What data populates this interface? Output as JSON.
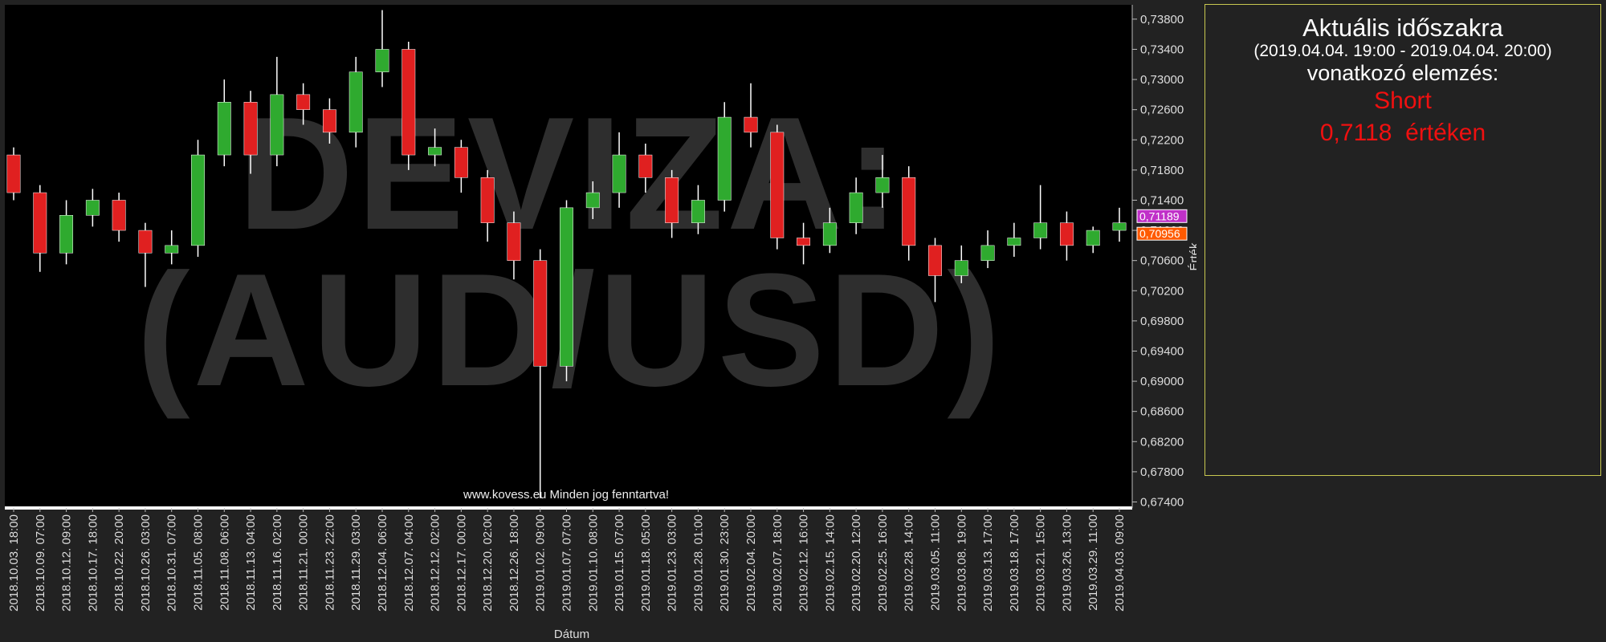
{
  "chart_data": {
    "type": "candlestick",
    "watermark": [
      "DEVIZA:",
      "(AUD/USD)"
    ],
    "footer": "www.kovess.eu Minden jog fenntartva!",
    "xlabel": "Dátum",
    "ylabel": "Érték",
    "up_color": "#2faa2f",
    "down_color": "#e02020",
    "categories": [
      "2018.10.03. 18:00",
      "2018.10.09. 07:00",
      "2018.10.12. 09:00",
      "2018.10.17. 18:00",
      "2018.10.22. 20:00",
      "2018.10.26. 03:00",
      "2018.10.31. 07:00",
      "2018.11.05. 08:00",
      "2018.11.08. 06:00",
      "2018.11.13. 04:00",
      "2018.11.16. 02:00",
      "2018.11.21. 00:00",
      "2018.11.23. 22:00",
      "2018.11.29. 03:00",
      "2018.12.04. 06:00",
      "2018.12.07. 04:00",
      "2018.12.12. 02:00",
      "2018.12.17. 00:00",
      "2018.12.20. 02:00",
      "2018.12.26. 18:00",
      "2019.01.02. 09:00",
      "2019.01.07. 07:00",
      "2019.01.10. 08:00",
      "2019.01.15. 07:00",
      "2019.01.18. 05:00",
      "2019.01.23. 03:00",
      "2019.01.28. 01:00",
      "2019.01.30. 23:00",
      "2019.02.04. 20:00",
      "2019.02.07. 18:00",
      "2019.02.12. 16:00",
      "2019.02.15. 14:00",
      "2019.02.20. 12:00",
      "2019.02.25. 16:00",
      "2019.02.28. 14:00",
      "2019.03.05. 11:00",
      "2019.03.08. 19:00",
      "2019.03.13. 17:00",
      "2019.03.18. 17:00",
      "2019.03.21. 15:00",
      "2019.03.26. 13:00",
      "2019.03.29. 11:00",
      "2019.04.03. 09:00"
    ],
    "open": [
      0.72,
      0.715,
      0.707,
      0.712,
      0.714,
      0.71,
      0.707,
      0.708,
      0.72,
      0.727,
      0.72,
      0.728,
      0.726,
      0.723,
      0.731,
      0.734,
      0.72,
      0.721,
      0.717,
      0.711,
      0.706,
      0.692,
      0.713,
      0.715,
      0.72,
      0.717,
      0.711,
      0.714,
      0.725,
      0.723,
      0.709,
      0.708,
      0.711,
      0.715,
      0.717,
      0.708,
      0.704,
      0.706,
      0.708,
      0.709,
      0.711,
      0.708,
      0.71
    ],
    "high": [
      0.721,
      0.716,
      0.714,
      0.7155,
      0.715,
      0.711,
      0.71,
      0.722,
      0.73,
      0.7285,
      0.733,
      0.7295,
      0.7275,
      0.733,
      0.7392,
      0.735,
      0.7235,
      0.722,
      0.718,
      0.7125,
      0.7075,
      0.714,
      0.7165,
      0.723,
      0.7215,
      0.718,
      0.716,
      0.727,
      0.7295,
      0.724,
      0.711,
      0.713,
      0.717,
      0.72,
      0.7185,
      0.709,
      0.708,
      0.71,
      0.711,
      0.716,
      0.7125,
      0.7105,
      0.713
    ],
    "low": [
      0.714,
      0.7045,
      0.7055,
      0.7105,
      0.7085,
      0.7025,
      0.7055,
      0.7065,
      0.7185,
      0.7175,
      0.7185,
      0.724,
      0.7215,
      0.721,
      0.729,
      0.718,
      0.7185,
      0.715,
      0.7085,
      0.7035,
      0.6745,
      0.69,
      0.7115,
      0.713,
      0.715,
      0.709,
      0.7095,
      0.7125,
      0.721,
      0.7075,
      0.7055,
      0.707,
      0.7095,
      0.713,
      0.706,
      0.7005,
      0.703,
      0.705,
      0.7065,
      0.7075,
      0.706,
      0.707,
      0.7085
    ],
    "close": [
      0.715,
      0.707,
      0.712,
      0.714,
      0.71,
      0.707,
      0.708,
      0.72,
      0.727,
      0.72,
      0.728,
      0.726,
      0.723,
      0.731,
      0.734,
      0.72,
      0.721,
      0.717,
      0.711,
      0.706,
      0.692,
      0.713,
      0.715,
      0.72,
      0.717,
      0.711,
      0.714,
      0.725,
      0.723,
      0.709,
      0.708,
      0.711,
      0.715,
      0.717,
      0.708,
      0.704,
      0.706,
      0.708,
      0.709,
      0.711,
      0.708,
      0.71,
      0.711
    ],
    "ylim": [
      0.6732,
      0.7399
    ],
    "yticks": [
      {
        "value": 0.674,
        "label": "0,67400"
      },
      {
        "value": 0.678,
        "label": "0,67800"
      },
      {
        "value": 0.682,
        "label": "0,68200"
      },
      {
        "value": 0.686,
        "label": "0,68600"
      },
      {
        "value": 0.69,
        "label": "0,69000"
      },
      {
        "value": 0.694,
        "label": "0,69400"
      },
      {
        "value": 0.698,
        "label": "0,69800"
      },
      {
        "value": 0.702,
        "label": "0,70200"
      },
      {
        "value": 0.706,
        "label": "0,70600"
      },
      {
        "value": 0.71,
        "label": "0,71000"
      },
      {
        "value": 0.714,
        "label": "0,71400"
      },
      {
        "value": 0.718,
        "label": "0,71800"
      },
      {
        "value": 0.722,
        "label": "0,72200"
      },
      {
        "value": 0.726,
        "label": "0,72600"
      },
      {
        "value": 0.73,
        "label": "0,73000"
      },
      {
        "value": 0.734,
        "label": "0,73400"
      },
      {
        "value": 0.738,
        "label": "0,73800"
      }
    ],
    "price_markers": [
      {
        "value": 0.71189,
        "label": "0,71189",
        "color": "#c030c8"
      },
      {
        "value": 0.70956,
        "label": "0,70956",
        "color": "#ff5a00"
      }
    ]
  },
  "panel": {
    "title": "Aktuális időszakra",
    "period": "(2019.04.04. 19:00 - 2019.04.04. 20:00)",
    "subtitle": "vonatkozó elemzés:",
    "signal": "Short",
    "price": "0,7118",
    "price_suffix": "értéken"
  }
}
